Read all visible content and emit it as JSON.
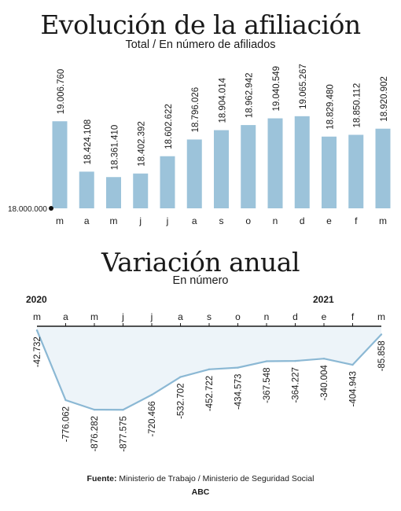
{
  "chart_data": [
    {
      "type": "bar",
      "title": "Evolución de la afiliación",
      "subtitle": "Total / En número de afiliados",
      "baseline_label": "18.000.000",
      "ylim": [
        18000000,
        19100000
      ],
      "categories": [
        "m",
        "a",
        "m",
        "j",
        "j",
        "a",
        "s",
        "o",
        "n",
        "d",
        "e",
        "f",
        "m"
      ],
      "values": [
        19006760,
        18424108,
        18361410,
        18402392,
        18602622,
        18796026,
        18904014,
        18962942,
        19040549,
        19065267,
        18829480,
        18850112,
        18920902
      ],
      "value_labels": [
        "19.006.760",
        "18.424.108",
        "18.361.410",
        "18.402.392",
        "18.602.622",
        "18.796.026",
        "18.904.014",
        "18.962.942",
        "19.040.549",
        "19.065.267",
        "18.829.480",
        "18.850.112",
        "18.920.902"
      ],
      "bar_color": "#9cc3da"
    },
    {
      "type": "area",
      "title": "Variación anual",
      "subtitle": "En número",
      "year_labels": [
        "2020",
        "2021"
      ],
      "categories": [
        "m",
        "a",
        "m",
        "j",
        "j",
        "a",
        "s",
        "o",
        "n",
        "d",
        "e",
        "f",
        "m"
      ],
      "values": [
        -42732,
        -776062,
        -876282,
        -877575,
        -720466,
        -532702,
        -452722,
        -434573,
        -367548,
        -364227,
        -340004,
        -404943,
        -85858
      ],
      "value_labels": [
        "-42.732",
        "-776.062",
        "-876.282",
        "-877.575",
        "-720.466",
        "-532.702",
        "-452.722",
        "-434.573",
        "-367.548",
        "-364.227",
        "-340.004",
        "-404.943",
        "-85.858"
      ],
      "ylim": [
        -900000,
        0
      ],
      "line_color": "#8bb8d4",
      "fill_color": "#edf4f9"
    }
  ],
  "footer": {
    "source_label": "Fuente:",
    "source_text": " Ministerio de Trabajo / Ministerio de Seguridad Social",
    "brand": "ABC"
  }
}
